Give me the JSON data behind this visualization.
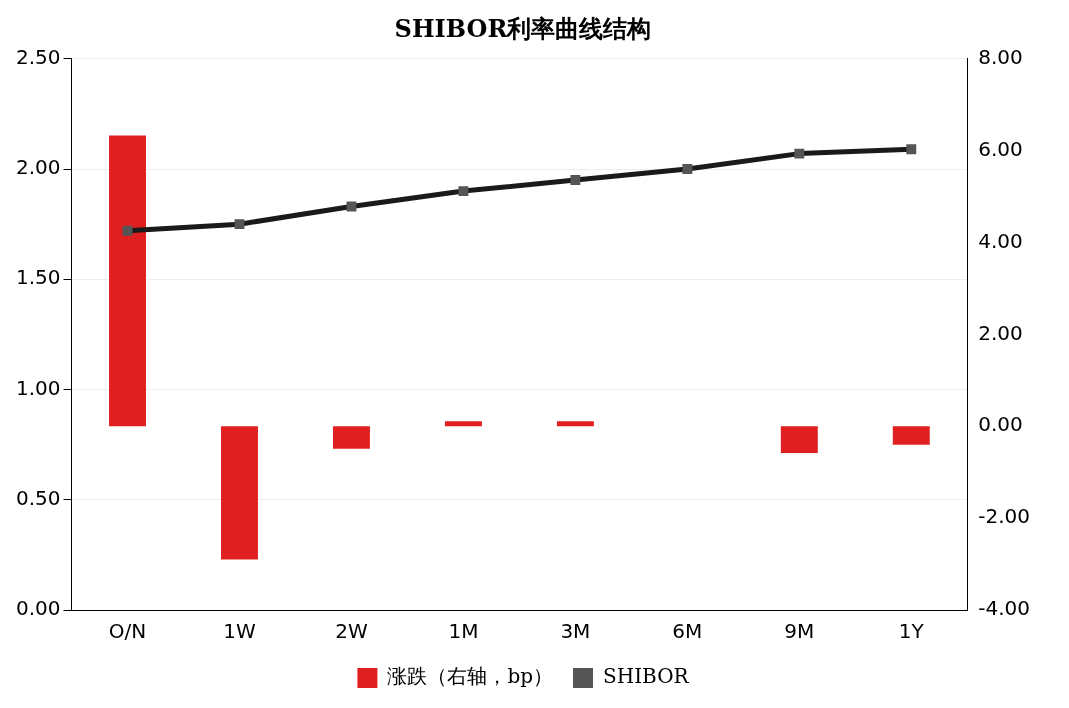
{
  "chart_data": {
    "type": "bar",
    "title": "SHIBOR利率曲线结构",
    "categories": [
      "O/N",
      "1W",
      "2W",
      "1M",
      "3M",
      "6M",
      "9M",
      "1Y"
    ],
    "series": [
      {
        "name": "涨跌（右轴，bp）",
        "axis": "y2",
        "color": "#e02020",
        "values": [
          6.33,
          -2.9,
          -0.49,
          0.11,
          0.11,
          0,
          -0.58,
          -0.4
        ]
      },
      {
        "name": "SHIBOR",
        "type": "line",
        "color": "#1a1a1a",
        "marker": "square",
        "values": [
          1.72,
          1.75,
          1.83,
          1.9,
          1.95,
          2.0,
          2.07,
          2.09
        ]
      }
    ],
    "ylim": [
      0,
      2.5
    ],
    "yticks": [
      {
        "value": 0,
        "label": "0.00"
      },
      {
        "value": 0.5,
        "label": "0.50"
      },
      {
        "value": 1,
        "label": "1.00"
      },
      {
        "value": 1.5,
        "label": "1.50"
      },
      {
        "value": 2,
        "label": "2.00"
      },
      {
        "value": 2.5,
        "label": "2.50"
      }
    ],
    "y2lim": [
      -4,
      8
    ],
    "y2ticks": [
      {
        "value": -4,
        "label": "-4.00"
      },
      {
        "value": -2,
        "label": "-2.00"
      },
      {
        "value": 0,
        "label": "0.00"
      },
      {
        "value": 2,
        "label": "2.00"
      },
      {
        "value": 4,
        "label": "4.00"
      },
      {
        "value": 6,
        "label": "6.00"
      },
      {
        "value": 8,
        "label": "8.00"
      }
    ],
    "grid": "y",
    "legend": "bottom"
  }
}
